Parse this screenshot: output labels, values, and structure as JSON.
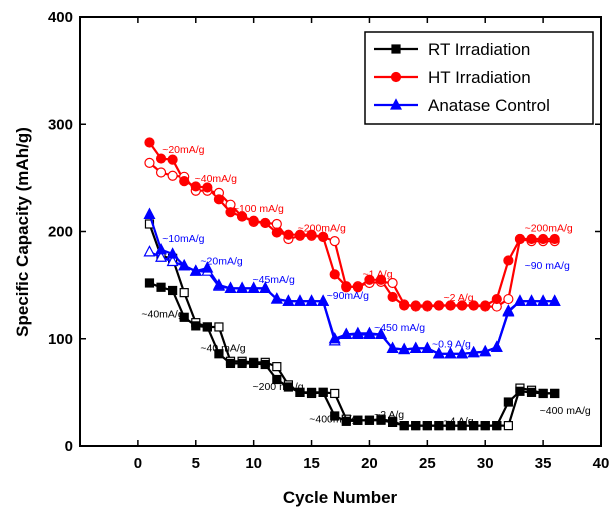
{
  "chart_data": {
    "type": "line",
    "title": "",
    "xlabel": "Cycle Number",
    "ylabel": "Specific Capacity (mAh/g)",
    "xlim": [
      -5,
      40
    ],
    "ylim": [
      0,
      400
    ],
    "xticks": [
      "0",
      "5",
      "10",
      "15",
      "20",
      "25",
      "30",
      "35",
      "40"
    ],
    "yticks": [
      "0",
      "100",
      "200",
      "300",
      "400"
    ],
    "grid": false,
    "legend_position": "top-right",
    "series": [
      {
        "name": "RT Irradiation",
        "color": "#000000",
        "marker": "square",
        "x": [
          1,
          2,
          3,
          4,
          5,
          6,
          7,
          8,
          9,
          10,
          11,
          12,
          13,
          14,
          15,
          16,
          17,
          18,
          19,
          20,
          21,
          22,
          23,
          24,
          25,
          26,
          27,
          28,
          29,
          30,
          31,
          32,
          33,
          34,
          35,
          36
        ],
        "charge": [
          152,
          148,
          145,
          120,
          112,
          111,
          86,
          77,
          77,
          77,
          76,
          62,
          55,
          50,
          50,
          50,
          28,
          23,
          24,
          24,
          24,
          22,
          19,
          19,
          19,
          19,
          19,
          19,
          19,
          19,
          19,
          41,
          51,
          50,
          49,
          49
        ],
        "discharge": [
          207,
          177,
          175,
          143,
          115,
          111,
          111,
          79,
          79,
          78,
          78,
          74,
          57,
          50,
          49,
          50,
          49,
          25,
          24,
          24,
          25,
          23,
          19,
          19,
          19,
          19,
          19,
          19,
          19,
          19,
          19,
          19,
          54,
          52,
          49,
          49
        ]
      },
      {
        "name": "HT Irradiation",
        "color": "#ff0000",
        "marker": "circle",
        "x": [
          1,
          2,
          3,
          4,
          5,
          6,
          7,
          8,
          9,
          10,
          11,
          12,
          13,
          14,
          15,
          16,
          17,
          18,
          19,
          20,
          21,
          22,
          23,
          24,
          25,
          26,
          27,
          28,
          29,
          30,
          31,
          32,
          33,
          34,
          35,
          36
        ],
        "charge": [
          283,
          268,
          267,
          247,
          242,
          241,
          230,
          218,
          214,
          210,
          208,
          199,
          197,
          197,
          197,
          195,
          160,
          149,
          148,
          155,
          155,
          139,
          131,
          131,
          131,
          131,
          131,
          131,
          131,
          131,
          137,
          173,
          193,
          193,
          193,
          193
        ],
        "discharge": [
          264,
          255,
          252,
          251,
          238,
          238,
          236,
          225,
          214,
          209,
          208,
          207,
          193,
          196,
          196,
          195,
          191,
          148,
          149,
          152,
          153,
          152,
          132,
          130,
          130,
          131,
          131,
          131,
          131,
          130,
          130,
          137,
          193,
          191,
          191,
          191
        ]
      },
      {
        "name": "Anatase Control",
        "color": "#0000ff",
        "marker": "triangle",
        "x": [
          1,
          2,
          3,
          4,
          5,
          6,
          7,
          8,
          9,
          10,
          11,
          12,
          13,
          14,
          15,
          16,
          17,
          18,
          19,
          20,
          21,
          22,
          23,
          24,
          25,
          26,
          27,
          28,
          29,
          30,
          31,
          32,
          33,
          34,
          35,
          36
        ],
        "charge": [
          216,
          183,
          179,
          168,
          163,
          166,
          150,
          147,
          147,
          147,
          147,
          137,
          135,
          135,
          135,
          135,
          100,
          104,
          105,
          105,
          104,
          91,
          90,
          91,
          91,
          86,
          86,
          86,
          87,
          88,
          92,
          125,
          135,
          135,
          135,
          135
        ],
        "discharge": [
          181,
          176,
          172,
          168,
          163,
          163,
          149,
          147,
          147,
          147,
          147,
          137,
          135,
          135,
          135,
          135,
          98,
          104,
          104,
          104,
          104,
          91,
          90,
          91,
          91,
          86,
          86,
          86,
          87,
          88,
          92,
          126,
          135,
          135,
          135,
          135
        ]
      }
    ],
    "annotations": [
      {
        "text": "~20mA/g",
        "color": "#ff0000",
        "x": 2.1,
        "y": 273
      },
      {
        "text": "~40mA/g",
        "color": "#ff0000",
        "x": 4.9,
        "y": 246
      },
      {
        "text": "~100 mA/g",
        "color": "#ff0000",
        "x": 8.2,
        "y": 218
      },
      {
        "text": "~200mA/g",
        "color": "#ff0000",
        "x": 13.8,
        "y": 200
      },
      {
        "text": "~1 A/g",
        "color": "#ff0000",
        "x": 19.4,
        "y": 157
      },
      {
        "text": "~2 A/g",
        "color": "#ff0000",
        "x": 26.4,
        "y": 135
      },
      {
        "text": "~200mA/g",
        "color": "#ff0000",
        "x": 33.4,
        "y": 200
      },
      {
        "text": "~10mA/g",
        "color": "#0000ff",
        "x": 2.1,
        "y": 190
      },
      {
        "text": "~20mA/g",
        "color": "#0000ff",
        "x": 5.4,
        "y": 169
      },
      {
        "text": "~45mA/g",
        "color": "#0000ff",
        "x": 9.9,
        "y": 152
      },
      {
        "text": "~90mA/g",
        "color": "#0000ff",
        "x": 16.3,
        "y": 137
      },
      {
        "text": "~450 mA/g",
        "color": "#0000ff",
        "x": 20.4,
        "y": 107
      },
      {
        "text": "~0.9 A/g",
        "color": "#0000ff",
        "x": 25.4,
        "y": 92
      },
      {
        "text": "~90 mA/g",
        "color": "#0000ff",
        "x": 33.4,
        "y": 165
      },
      {
        "text": "~40mA/g",
        "color": "#000000",
        "x": 0.3,
        "y": 120
      },
      {
        "text": "~40 mA/g",
        "color": "#000000",
        "x": 5.4,
        "y": 88
      },
      {
        "text": "~200 mA/g",
        "color": "#000000",
        "x": 9.9,
        "y": 52
      },
      {
        "text": "~400mA/g",
        "color": "#000000",
        "x": 14.8,
        "y": 22
      },
      {
        "text": "~2 A/g",
        "color": "#000000",
        "x": 20.4,
        "y": 26
      },
      {
        "text": "~4 A/g",
        "color": "#000000",
        "x": 26.4,
        "y": 20
      },
      {
        "text": "~400 mA/g",
        "color": "#000000",
        "x": 34.7,
        "y": 30
      }
    ]
  }
}
